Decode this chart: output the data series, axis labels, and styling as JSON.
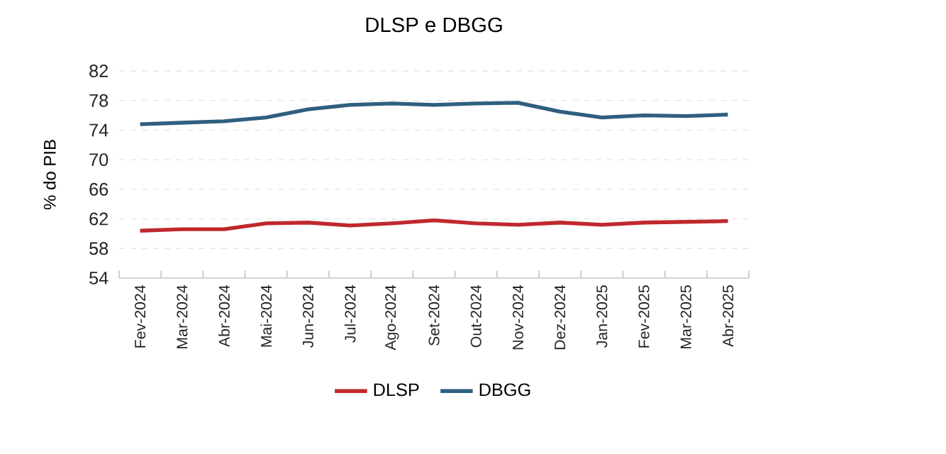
{
  "chart_data": {
    "type": "line",
    "title": "DLSP e DBGG",
    "ylabel": "% do PIB",
    "categories": [
      "Fev-2024",
      "Mar-2024",
      "Abr-2024",
      "Mai-2024",
      "Jun-2024",
      "Jul-2024",
      "Ago-2024",
      "Set-2024",
      "Out-2024",
      "Nov-2024",
      "Dez-2024",
      "Jan-2025",
      "Fev-2025",
      "Mar-2025",
      "Abr-2025"
    ],
    "series": [
      {
        "name": "DLSP",
        "color": "#c0282d",
        "values": [
          60.4,
          60.6,
          60.6,
          61.4,
          61.5,
          61.1,
          61.4,
          61.8,
          61.4,
          61.2,
          61.5,
          61.2,
          61.5,
          61.6,
          61.7
        ]
      },
      {
        "name": "DBGG",
        "color": "#2f5f80",
        "values": [
          74.8,
          75.0,
          75.2,
          75.7,
          76.8,
          77.4,
          77.6,
          77.4,
          77.6,
          77.7,
          76.5,
          75.7,
          76.0,
          75.9,
          76.1
        ]
      }
    ],
    "ylim": [
      54,
      82
    ],
    "yticks": [
      54,
      58,
      62,
      66,
      70,
      74,
      78,
      82
    ],
    "grid": "y",
    "legend": "bottom",
    "marker": "none",
    "line_style": "solid"
  }
}
